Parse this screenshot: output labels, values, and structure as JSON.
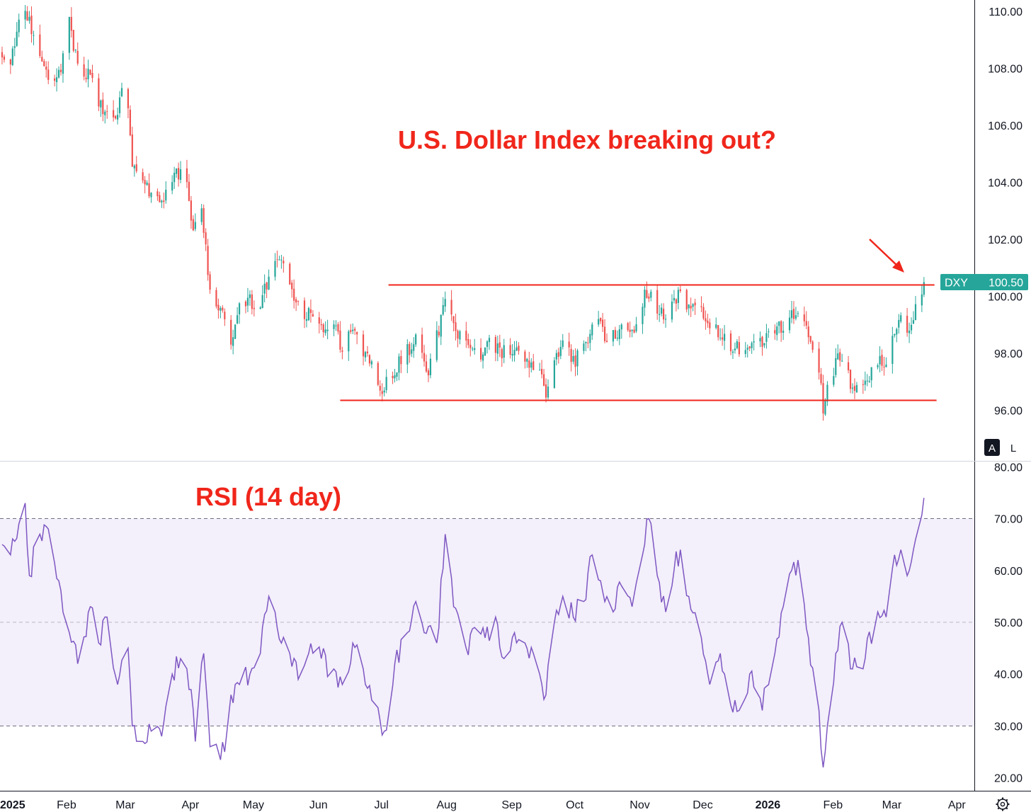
{
  "chart_data": [
    {
      "type": "candlestick",
      "symbol": "DXY",
      "last_price": "100.50",
      "ylim": [
        94.5,
        110.4
      ],
      "y_ticks": [
        "110.00",
        "108.00",
        "106.00",
        "104.00",
        "102.00",
        "100.00",
        "98.00",
        "96.00"
      ],
      "x_ticks": [
        "2025",
        "Feb",
        "Mar",
        "Apr",
        "May",
        "Jun",
        "Jul",
        "Aug",
        "Sep",
        "Oct",
        "Nov",
        "Dec",
        "2026",
        "Feb",
        "Mar",
        "Apr"
      ],
      "x_range": [
        "2025-01-01",
        "2026-04-10"
      ],
      "annotation": "U.S. Dollar Index breaking out?",
      "resistance": 100.4,
      "support": 96.35,
      "up_color": "#26a69a",
      "down_color": "#ef5350",
      "path": [
        [
          "2025-01-02",
          108.5
        ],
        [
          "2025-01-06",
          108.2
        ],
        [
          "2025-01-10",
          109.5
        ],
        [
          "2025-01-13",
          110.0
        ],
        [
          "2025-01-17",
          109.3
        ],
        [
          "2025-01-22",
          108.0
        ],
        [
          "2025-01-27",
          107.6
        ],
        [
          "2025-01-31",
          108.3
        ],
        [
          "2025-02-03",
          109.6
        ],
        [
          "2025-02-07",
          108.1
        ],
        [
          "2025-02-12",
          107.8
        ],
        [
          "2025-02-17",
          106.8
        ],
        [
          "2025-02-21",
          106.5
        ],
        [
          "2025-02-26",
          106.3
        ],
        [
          "2025-02-28",
          107.4
        ],
        [
          "2025-03-03",
          106.8
        ],
        [
          "2025-03-05",
          104.5
        ],
        [
          "2025-03-10",
          103.8
        ],
        [
          "2025-03-14",
          103.7
        ],
        [
          "2025-03-20",
          103.4
        ],
        [
          "2025-03-26",
          104.3
        ],
        [
          "2025-03-31",
          104.2
        ],
        [
          "2025-04-03",
          102.2
        ],
        [
          "2025-04-07",
          103.3
        ],
        [
          "2025-04-11",
          100.0
        ],
        [
          "2025-04-16",
          99.6
        ],
        [
          "2025-04-21",
          98.5
        ],
        [
          "2025-04-25",
          99.5
        ],
        [
          "2025-04-30",
          99.8
        ],
        [
          "2025-05-05",
          99.8
        ],
        [
          "2025-05-12",
          101.4
        ],
        [
          "2025-05-16",
          100.9
        ],
        [
          "2025-05-22",
          99.6
        ],
        [
          "2025-05-28",
          99.4
        ],
        [
          "2025-06-03",
          98.9
        ],
        [
          "2025-06-09",
          99.2
        ],
        [
          "2025-06-13",
          98.1
        ],
        [
          "2025-06-18",
          98.8
        ],
        [
          "2025-06-24",
          98.0
        ],
        [
          "2025-06-30",
          96.9
        ],
        [
          "2025-07-03",
          96.8
        ],
        [
          "2025-07-08",
          97.5
        ],
        [
          "2025-07-14",
          98.1
        ],
        [
          "2025-07-18",
          98.5
        ],
        [
          "2025-07-24",
          97.4
        ],
        [
          "2025-07-29",
          98.9
        ],
        [
          "2025-08-01",
          100.1
        ],
        [
          "2025-08-05",
          98.8
        ],
        [
          "2025-08-11",
          98.4
        ],
        [
          "2025-08-18",
          97.9
        ],
        [
          "2025-08-22",
          98.4
        ],
        [
          "2025-08-28",
          98.0
        ],
        [
          "2025-09-03",
          98.2
        ],
        [
          "2025-09-09",
          97.7
        ],
        [
          "2025-09-15",
          97.4
        ],
        [
          "2025-09-18",
          96.7
        ],
        [
          "2025-09-22",
          97.6
        ],
        [
          "2025-09-26",
          98.2
        ],
        [
          "2025-10-02",
          97.8
        ],
        [
          "2025-10-08",
          98.6
        ],
        [
          "2025-10-13",
          99.2
        ],
        [
          "2025-10-17",
          98.4
        ],
        [
          "2025-10-23",
          98.9
        ],
        [
          "2025-10-28",
          98.6
        ],
        [
          "2025-11-03",
          99.8
        ],
        [
          "2025-11-05",
          100.2
        ],
        [
          "2025-11-10",
          99.6
        ],
        [
          "2025-11-14",
          99.3
        ],
        [
          "2025-11-20",
          100.1
        ],
        [
          "2025-11-25",
          99.7
        ],
        [
          "2025-12-01",
          99.4
        ],
        [
          "2025-12-05",
          99.0
        ],
        [
          "2025-12-11",
          98.5
        ],
        [
          "2025-12-16",
          98.2
        ],
        [
          "2025-12-22",
          98.1
        ],
        [
          "2025-12-29",
          98.3
        ],
        [
          "2026-01-05",
          98.8
        ],
        [
          "2026-01-12",
          99.2
        ],
        [
          "2026-01-16",
          99.4
        ],
        [
          "2026-01-21",
          98.8
        ],
        [
          "2026-01-26",
          97.5
        ],
        [
          "2026-01-28",
          96.0
        ],
        [
          "2026-01-30",
          96.8
        ],
        [
          "2026-02-03",
          97.7
        ],
        [
          "2026-02-06",
          97.8
        ],
        [
          "2026-02-11",
          96.7
        ],
        [
          "2026-02-17",
          97.0
        ],
        [
          "2026-02-23",
          97.7
        ],
        [
          "2026-02-27",
          97.6
        ],
        [
          "2026-03-03",
          98.9
        ],
        [
          "2026-03-06",
          99.2
        ],
        [
          "2026-03-10",
          98.9
        ],
        [
          "2026-03-13",
          99.6
        ],
        [
          "2026-03-17",
          100.5
        ]
      ]
    },
    {
      "type": "line",
      "title": "RSI (14 day)",
      "ylim": [
        17.5,
        81
      ],
      "y_ticks": [
        "80.00",
        "70.00",
        "60.00",
        "50.00",
        "40.00",
        "30.00",
        "20.00"
      ],
      "levels": [
        70,
        50,
        30
      ],
      "line_color": "#7e57c2",
      "band_color": "#f3effb",
      "points": [
        [
          "2025-01-02",
          65
        ],
        [
          "2025-01-06",
          63
        ],
        [
          "2025-01-10",
          69
        ],
        [
          "2025-01-13",
          73
        ],
        [
          "2025-01-15",
          59
        ],
        [
          "2025-01-20",
          67
        ],
        [
          "2025-01-24",
          68
        ],
        [
          "2025-01-29",
          58
        ],
        [
          "2025-02-03",
          48
        ],
        [
          "2025-02-07",
          42
        ],
        [
          "2025-02-13",
          53
        ],
        [
          "2025-02-17",
          46
        ],
        [
          "2025-02-21",
          51
        ],
        [
          "2025-02-26",
          38
        ],
        [
          "2025-03-03",
          45
        ],
        [
          "2025-03-05",
          30
        ],
        [
          "2025-03-10",
          27
        ],
        [
          "2025-03-14",
          29
        ],
        [
          "2025-03-19",
          28
        ],
        [
          "2025-03-24",
          40
        ],
        [
          "2025-03-28",
          43
        ],
        [
          "2025-04-02",
          37
        ],
        [
          "2025-04-04",
          27
        ],
        [
          "2025-04-08",
          44
        ],
        [
          "2025-04-11",
          26
        ],
        [
          "2025-04-15",
          25
        ],
        [
          "2025-04-18",
          25
        ],
        [
          "2025-04-21",
          36
        ],
        [
          "2025-04-25",
          38
        ],
        [
          "2025-04-30",
          40
        ],
        [
          "2025-05-05",
          44
        ],
        [
          "2025-05-09",
          55
        ],
        [
          "2025-05-13",
          49
        ],
        [
          "2025-05-19",
          44
        ],
        [
          "2025-05-23",
          39
        ],
        [
          "2025-05-28",
          44
        ],
        [
          "2025-06-03",
          43
        ],
        [
          "2025-06-09",
          41
        ],
        [
          "2025-06-13",
          38
        ],
        [
          "2025-06-18",
          46
        ],
        [
          "2025-06-24",
          38
        ],
        [
          "2025-06-27",
          35
        ],
        [
          "2025-07-01",
          31
        ],
        [
          "2025-07-03",
          29
        ],
        [
          "2025-07-08",
          42
        ],
        [
          "2025-07-14",
          48
        ],
        [
          "2025-07-18",
          54
        ],
        [
          "2025-07-22",
          48
        ],
        [
          "2025-07-28",
          46
        ],
        [
          "2025-08-01",
          67
        ],
        [
          "2025-08-05",
          53
        ],
        [
          "2025-08-11",
          45
        ],
        [
          "2025-08-15",
          49
        ],
        [
          "2025-08-20",
          47
        ],
        [
          "2025-08-25",
          51
        ],
        [
          "2025-08-29",
          43
        ],
        [
          "2025-09-03",
          48
        ],
        [
          "2025-09-08",
          46
        ],
        [
          "2025-09-12",
          44
        ],
        [
          "2025-09-15",
          40
        ],
        [
          "2025-09-18",
          36
        ],
        [
          "2025-09-22",
          50
        ],
        [
          "2025-09-26",
          55
        ],
        [
          "2025-10-01",
          51
        ],
        [
          "2025-10-06",
          54
        ],
        [
          "2025-10-10",
          63
        ],
        [
          "2025-10-14",
          58
        ],
        [
          "2025-10-20",
          52
        ],
        [
          "2025-10-24",
          57
        ],
        [
          "2025-10-29",
          53
        ],
        [
          "2025-11-03",
          63
        ],
        [
          "2025-11-06",
          70
        ],
        [
          "2025-11-10",
          59
        ],
        [
          "2025-11-14",
          52
        ],
        [
          "2025-11-18",
          60
        ],
        [
          "2025-11-21",
          64
        ],
        [
          "2025-11-25",
          55
        ],
        [
          "2025-12-01",
          47
        ],
        [
          "2025-12-05",
          38
        ],
        [
          "2025-12-10",
          44
        ],
        [
          "2025-12-15",
          34
        ],
        [
          "2025-12-19",
          33
        ],
        [
          "2025-12-24",
          40
        ],
        [
          "2025-12-30",
          33
        ],
        [
          "2026-01-05",
          44
        ],
        [
          "2026-01-09",
          53
        ],
        [
          "2026-01-13",
          60
        ],
        [
          "2026-01-16",
          62
        ],
        [
          "2026-01-21",
          47
        ],
        [
          "2026-01-26",
          33
        ],
        [
          "2026-01-28",
          22
        ],
        [
          "2026-01-30",
          30
        ],
        [
          "2026-02-03",
          44
        ],
        [
          "2026-02-06",
          50
        ],
        [
          "2026-02-11",
          41
        ],
        [
          "2026-02-17",
          43
        ],
        [
          "2026-02-23",
          52
        ],
        [
          "2026-02-27",
          51
        ],
        [
          "2026-03-03",
          63
        ],
        [
          "2026-03-06",
          64
        ],
        [
          "2026-03-10",
          60
        ],
        [
          "2026-03-13",
          66
        ],
        [
          "2026-03-17",
          74
        ]
      ]
    }
  ],
  "controls": {
    "auto_label": "A",
    "log_label": "L"
  }
}
